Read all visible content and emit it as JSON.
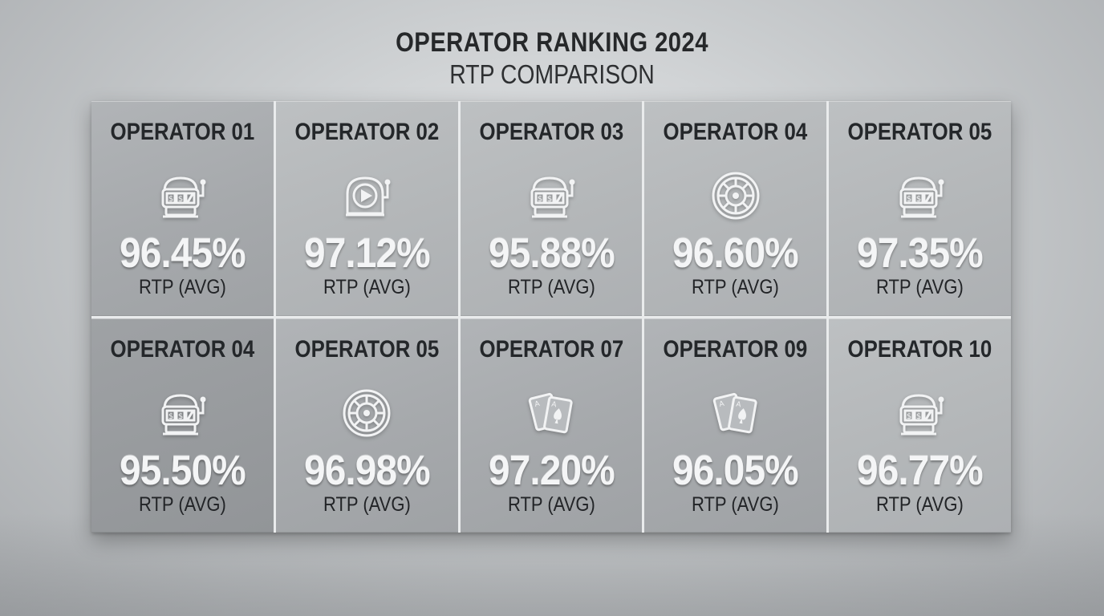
{
  "header": {
    "title": "OPERATOR RANKING 2024",
    "subtitle": "RTP COMPARISON"
  },
  "cards": [
    {
      "name": "OPERATOR 01",
      "icon": "slot-machine-icon",
      "value": "96.45%",
      "label": "RTP (AVG)"
    },
    {
      "name": "OPERATOR 02",
      "icon": "play-button-slot-icon",
      "value": "97.12%",
      "label": "RTP (AVG)"
    },
    {
      "name": "OPERATOR 03",
      "icon": "slot-machine-icon",
      "value": "95.88%",
      "label": "RTP (AVG)"
    },
    {
      "name": "OPERATOR 04",
      "icon": "roulette-wheel-icon",
      "value": "96.60%",
      "label": "RTP (AVG)"
    },
    {
      "name": "OPERATOR 05",
      "icon": "slot-machine-icon",
      "value": "97.35%",
      "label": "RTP (AVG)"
    },
    {
      "name": "OPERATOR 04",
      "icon": "slot-machine-icon",
      "value": "95.50%",
      "label": "RTP (AVG)"
    },
    {
      "name": "OPERATOR 05",
      "icon": "roulette-wheel-icon",
      "value": "96.98%",
      "label": "RTP (AVG)"
    },
    {
      "name": "OPERATOR 07",
      "icon": "playing-cards-icon",
      "value": "97.20%",
      "label": "RTP (AVG)"
    },
    {
      "name": "OPERATOR 09",
      "icon": "playing-cards-icon",
      "value": "96.05%",
      "label": "RTP (AVG)"
    },
    {
      "name": "OPERATOR 10",
      "icon": "slot-machine-icon",
      "value": "96.77%",
      "label": "RTP (AVG)"
    }
  ],
  "colors": {
    "icon": "#f2f3f4",
    "value_text": "#f4f5f6",
    "dark_text": "#24272a",
    "grid_lines": "#e9ebec"
  }
}
